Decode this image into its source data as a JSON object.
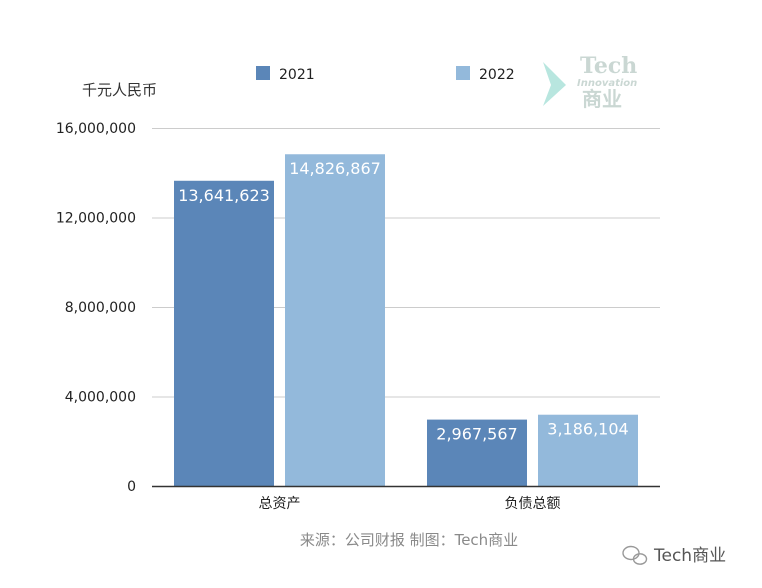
{
  "chart_data": {
    "type": "bar",
    "categories": [
      "总资产",
      "负债总额"
    ],
    "series": [
      {
        "name": "2021",
        "values": [
          13641623,
          2967567
        ],
        "color": "#5b86b8"
      },
      {
        "name": "2022",
        "values": [
          14826867,
          3186104
        ],
        "color": "#93b9db"
      }
    ],
    "data_labels": [
      [
        "13,641,623",
        "2,967,567"
      ],
      [
        "14,826,867",
        "3,186,104"
      ]
    ],
    "y_ticks": [
      "0",
      "4,000,000",
      "8,000,000",
      "12,000,000",
      "16,000,000"
    ],
    "ylim": [
      0,
      16000000
    ],
    "unit_label": "千元人民币",
    "legend_position": "top",
    "grid": true
  },
  "source_text": "来源：公司财报 制图：Tech商业",
  "watermark": {
    "line1": "Tech",
    "line2": "Innovation",
    "line3": "商业"
  },
  "footer_brand": "Tech商业",
  "colors": {
    "grid": "#cccccc",
    "axis": "#333333",
    "watermark": "#7fd3c6"
  }
}
